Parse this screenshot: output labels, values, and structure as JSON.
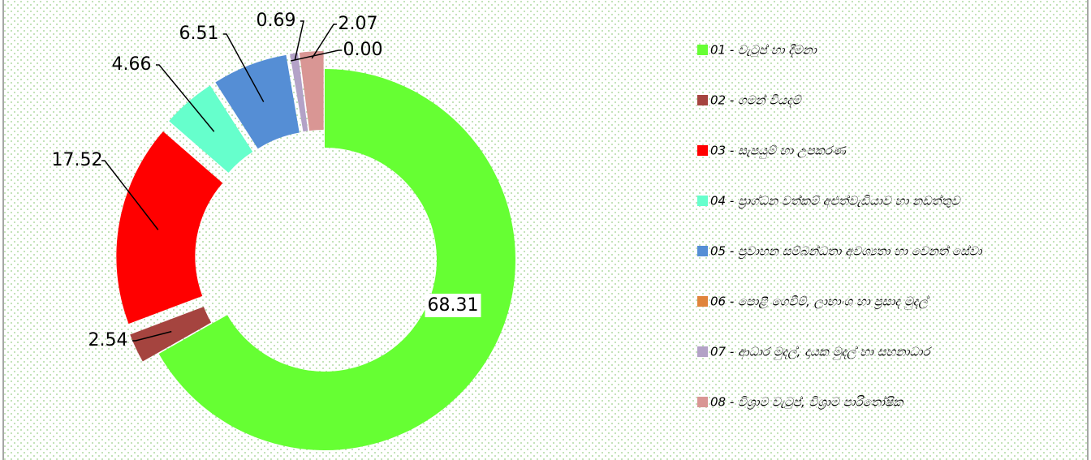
{
  "chart_data": {
    "type": "donut",
    "categories": [
      "01 - වැටුප් හා දීමනා",
      "02 - ගමන් වියදම්",
      "03 - සැපයුම් හා උපකරණ",
      "04 - ප්‍රාග්ධන වත්කම් අළුත්වැඩියාව හා නඩත්තුව",
      "05 - ප්‍රවාහන සම්බන්ධතා අවශ්‍යතා හා වෙනත් සේවා",
      "06 - පොළී ගෙවීම්, ලාභාංශ හා ප්‍රසාද මුදල්",
      "07 - ආධාර මුදල්, දායක මුදල් හා සහනාධාර",
      "08 - විශ්‍රාම වැටුප්, විශ්‍රාම පාරිතෝෂික"
    ],
    "values": [
      68.31,
      2.54,
      17.52,
      4.66,
      6.51,
      0.0,
      0.69,
      2.07
    ],
    "value_labels": [
      "68.31",
      "2.54",
      "17.52",
      "4.66",
      "6.51",
      "0.00",
      "0.69",
      "2.07"
    ],
    "colors": [
      "#66ff33",
      "#a5443f",
      "#ff0000",
      "#66ffcc",
      "#558ed5",
      "#e0843a",
      "#b3a2c7",
      "#d99694"
    ],
    "legend": "right"
  }
}
